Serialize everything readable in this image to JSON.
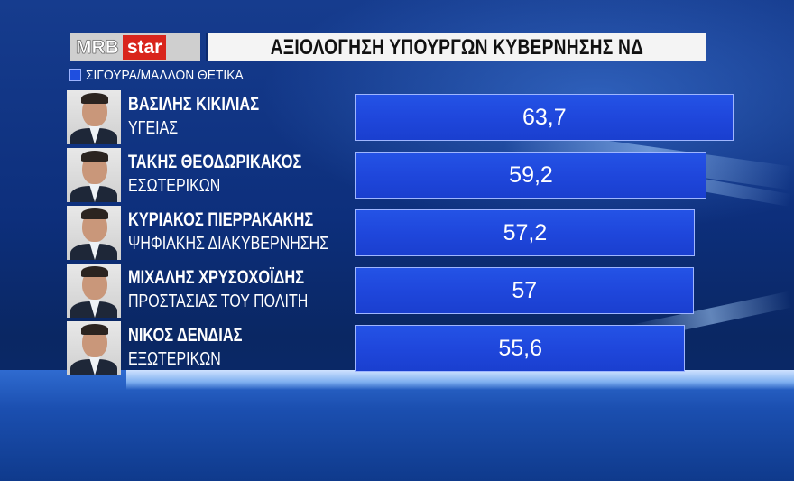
{
  "header": {
    "logo_mrb": "MRB",
    "logo_star": "star",
    "title": "ΑΞΙΟΛΟΓΗΣΗ ΥΠΟΥΡΓΩΝ ΚΥΒΕΡΝΗΣΗΣ ΝΔ"
  },
  "chart_data": {
    "type": "bar",
    "orientation": "horizontal",
    "title": "ΑΞΙΟΛΟΓΗΣΗ ΥΠΟΥΡΓΩΝ ΚΥΒΕΡΝΗΣΗΣ ΝΔ",
    "legend": [
      "ΣΙΓΟΥΡΑ/ΜΑΛΛΟΝ ΘΕΤΙΚΑ"
    ],
    "legend_placement": "top-left",
    "grid": false,
    "xlim": [
      0,
      70
    ],
    "series_color": "#1f4fe0",
    "categories": [
      {
        "name": "ΒΑΣΙΛΗΣ ΚΙΚΙΛΙΑΣ",
        "role": "ΥΓΕΙΑΣ"
      },
      {
        "name": "ΤΑΚΗΣ ΘΕΟΔΩΡΙΚΑΚΟΣ",
        "role": "ΕΣΩΤΕΡΙΚΩΝ"
      },
      {
        "name": "ΚΥΡΙΑΚΟΣ ΠΙΕΡΡΑΚΑΚΗΣ",
        "role": "ΨΗΦΙΑΚΗΣ ΔΙΑΚΥΒΕΡΝΗΣΗΣ"
      },
      {
        "name": "ΜΙΧΑΛΗΣ ΧΡΥΣΟΧΟΪΔΗΣ",
        "role": "ΠΡΟΣΤΑΣΙΑΣ ΤΟΥ ΠΟΛΙΤΗ"
      },
      {
        "name": "ΝΙΚΟΣ ΔΕΝΔΙΑΣ",
        "role": "ΕΞΩΤΕΡΙΚΩΝ"
      }
    ],
    "values": [
      63.7,
      59.2,
      57.2,
      57,
      55.6
    ],
    "value_labels": [
      "63,7",
      "59,2",
      "57,2",
      "57",
      "55,6"
    ]
  }
}
